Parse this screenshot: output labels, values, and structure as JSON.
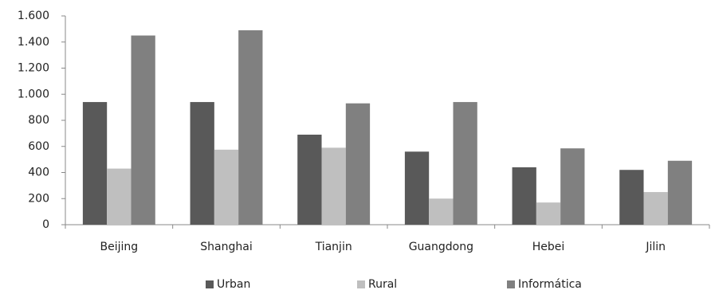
{
  "chart_data": {
    "type": "bar",
    "categories": [
      "Beijing",
      "Shanghai",
      "Tianjin",
      "Guangdong",
      "Hebei",
      "Jilin"
    ],
    "series": [
      {
        "name": "Urban",
        "color": "#595959",
        "values": [
          940,
          940,
          690,
          560,
          440,
          420
        ]
      },
      {
        "name": "Rural",
        "color": "#bfbfbf",
        "values": [
          430,
          575,
          590,
          200,
          170,
          250
        ]
      },
      {
        "name": "Informática",
        "color": "#808080",
        "values": [
          1450,
          1490,
          930,
          940,
          585,
          490
        ]
      }
    ],
    "ylim": [
      0,
      1600
    ],
    "yticks": [
      0,
      200,
      400,
      600,
      800,
      {
        "value": 1000,
        "label": "1.000"
      },
      {
        "value": 1200,
        "label": "1.200"
      },
      {
        "value": 1400,
        "label": "1.400"
      },
      {
        "value": 1600,
        "label": "1.600"
      }
    ],
    "grid": false,
    "legend": "bottom"
  }
}
